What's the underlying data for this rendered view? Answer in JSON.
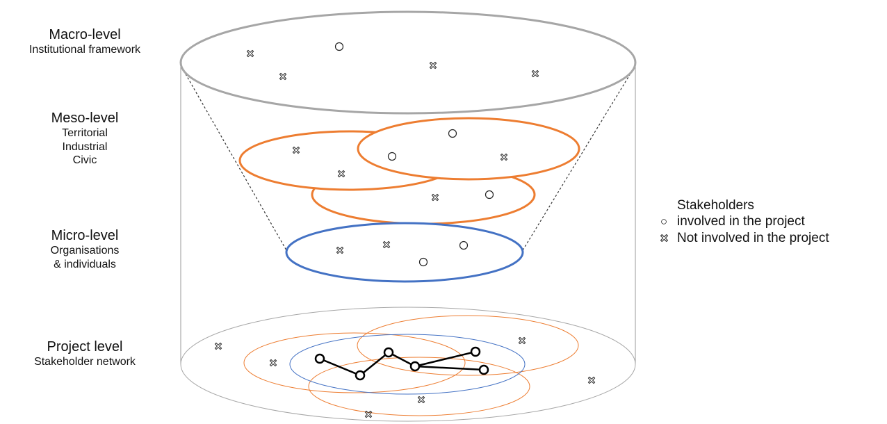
{
  "levels": {
    "macro": {
      "title": "Macro-level",
      "lines": [
        "Institutional framework"
      ]
    },
    "meso": {
      "title": "Meso-level",
      "lines": [
        "Territorial",
        "Industrial",
        "Civic"
      ]
    },
    "micro": {
      "title": "Micro-level",
      "lines": [
        "Organisations",
        "& individuals"
      ]
    },
    "project": {
      "title": "Project level",
      "lines": [
        "Stakeholder network"
      ]
    }
  },
  "legend": {
    "title": "Stakeholders",
    "involved": "involved in the project",
    "not_involved": "Not involved in the project"
  },
  "colors": {
    "macro": "#a6a6a6",
    "meso": "#ed7d31",
    "micro": "#4472c4",
    "network": "#000000"
  },
  "icons": {
    "involved": "circle-icon",
    "not_involved": "cross-icon"
  }
}
